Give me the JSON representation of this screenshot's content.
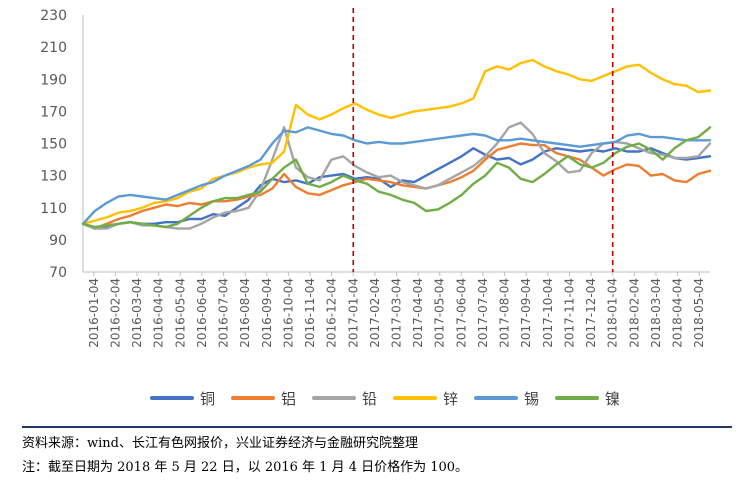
{
  "chart_data": {
    "type": "line",
    "title": "",
    "xlabel": "",
    "ylabel": "",
    "ylim": [
      70,
      230
    ],
    "yticks": [
      70,
      90,
      110,
      130,
      150,
      170,
      190,
      210,
      230
    ],
    "x_tick_labels": [
      "2016-01-04",
      "2016-02-04",
      "2016-03-04",
      "2016-04-04",
      "2016-05-04",
      "2016-06-04",
      "2016-07-04",
      "2016-08-04",
      "2016-09-04",
      "2016-10-04",
      "2016-11-04",
      "2016-12-04",
      "2017-01-04",
      "2017-02-04",
      "2017-03-04",
      "2017-04-04",
      "2017-05-04",
      "2017-06-04",
      "2017-07-04",
      "2017-08-04",
      "2017-09-04",
      "2017-10-04",
      "2017-11-04",
      "2017-12-04",
      "2018-01-04",
      "2018-02-04",
      "2018-03-04",
      "2018-04-04",
      "2018-05-04"
    ],
    "grid": false,
    "legend": "bottom",
    "vertical_markers": [
      "2017-01-04",
      "2018-01-04"
    ],
    "marker_color": "#c00000",
    "series": [
      {
        "name": "铜",
        "color": "#4472c4",
        "values": [
          100,
          97,
          98,
          100,
          101,
          100,
          100,
          101,
          101,
          103,
          103,
          106,
          105,
          110,
          115,
          124,
          128,
          126,
          127,
          125,
          129,
          130,
          131,
          128,
          129,
          128,
          123,
          127,
          126,
          130,
          134,
          138,
          142,
          147,
          143,
          140,
          141,
          137,
          140,
          145,
          147,
          146,
          145,
          146,
          145,
          147,
          145,
          145,
          147,
          144,
          141,
          140,
          141,
          142
        ]
      },
      {
        "name": "铝",
        "color": "#ed7d31",
        "values": [
          100,
          97,
          100,
          103,
          105,
          108,
          110,
          112,
          111,
          113,
          112,
          114,
          114,
          115,
          117,
          118,
          122,
          131,
          123,
          119,
          118,
          121,
          124,
          126,
          128,
          127,
          126,
          124,
          123,
          122,
          124,
          126,
          129,
          133,
          140,
          146,
          148,
          150,
          149,
          149,
          144,
          142,
          140,
          135,
          130,
          134,
          137,
          136,
          130,
          131,
          127,
          126,
          131,
          133
        ]
      },
      {
        "name": "铅",
        "color": "#a5a5a5",
        "values": [
          100,
          97,
          97,
          100,
          101,
          99,
          99,
          98,
          97,
          97,
          100,
          104,
          107,
          108,
          110,
          121,
          140,
          160,
          135,
          129,
          127,
          140,
          142,
          136,
          132,
          129,
          130,
          126,
          124,
          122,
          124,
          128,
          132,
          136,
          142,
          150,
          160,
          163,
          156,
          144,
          139,
          132,
          133,
          144,
          150,
          151,
          150,
          147,
          144,
          143,
          141,
          141,
          142,
          150
        ]
      },
      {
        "name": "锌",
        "color": "#ffc000",
        "values": [
          100,
          102,
          104,
          107,
          108,
          110,
          113,
          114,
          116,
          120,
          122,
          128,
          130,
          132,
          135,
          137,
          138,
          145,
          174,
          168,
          165,
          168,
          172,
          175,
          171,
          168,
          166,
          168,
          170,
          171,
          172,
          173,
          175,
          178,
          195,
          198,
          196,
          200,
          202,
          198,
          195,
          193,
          190,
          189,
          192,
          195,
          198,
          199,
          194,
          190,
          187,
          186,
          182,
          183
        ]
      },
      {
        "name": "锡",
        "color": "#5b9bd5",
        "values": [
          100,
          108,
          113,
          117,
          118,
          117,
          116,
          115,
          118,
          121,
          124,
          126,
          130,
          133,
          136,
          140,
          150,
          158,
          157,
          160,
          158,
          156,
          155,
          152,
          150,
          151,
          150,
          150,
          151,
          152,
          153,
          154,
          155,
          156,
          155,
          152,
          152,
          153,
          152,
          151,
          150,
          149,
          148,
          149,
          150,
          151,
          155,
          156,
          154,
          154,
          153,
          152,
          152,
          152
        ]
      },
      {
        "name": "镍",
        "color": "#70ad47",
        "values": [
          100,
          98,
          99,
          100,
          101,
          100,
          99,
          98,
          100,
          105,
          110,
          114,
          116,
          116,
          118,
          120,
          128,
          135,
          140,
          125,
          123,
          126,
          130,
          127,
          125,
          120,
          118,
          115,
          113,
          108,
          109,
          113,
          118,
          125,
          130,
          138,
          135,
          128,
          126,
          131,
          137,
          142,
          137,
          135,
          138,
          144,
          148,
          150,
          146,
          140,
          147,
          152,
          154,
          160
        ]
      }
    ]
  },
  "notes": {
    "source": "资料来源：wind、长江有色网报价，兴业证券经济与金融研究院整理",
    "note": "注：截至日期为 2018 年 5 月 22 日，以 2016 年 1 月 4 日价格作为 100。"
  }
}
